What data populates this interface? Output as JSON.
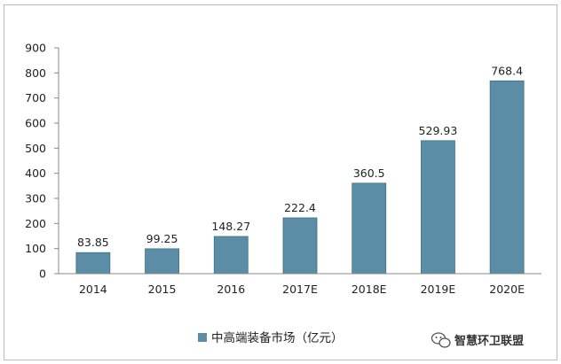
{
  "chart_data": {
    "type": "bar",
    "categories": [
      "2014",
      "2015",
      "2016",
      "2017E",
      "2018E",
      "2019E",
      "2020E"
    ],
    "series": [
      {
        "name": "中高端装备市场（亿元）",
        "values": [
          83.85,
          99.25,
          148.27,
          222.4,
          360.5,
          529.93,
          768.4
        ]
      }
    ],
    "data_labels": [
      "83.85",
      "99.25",
      "148.27",
      "222.4",
      "360.5",
      "529.93",
      "768.4"
    ],
    "ylim": [
      0,
      900
    ],
    "yticks": [
      0,
      100,
      200,
      300,
      400,
      500,
      600,
      700,
      800,
      900
    ],
    "grid": false,
    "legend_position": "bottom",
    "bar_color": "#5b8ea6",
    "bar_edge_color": "#3f6f86"
  },
  "watermark": {
    "text": "智慧环卫联盟",
    "icon": "wechat-icon"
  }
}
